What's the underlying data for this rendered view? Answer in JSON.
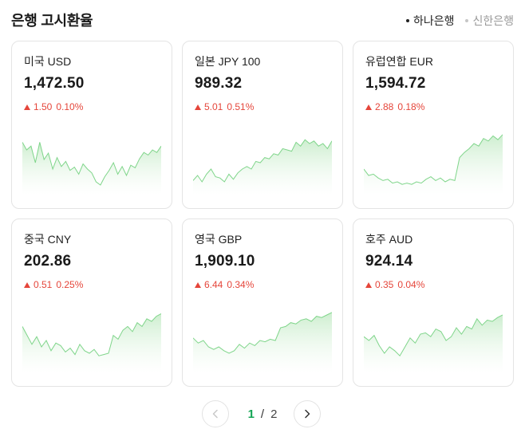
{
  "header": {
    "title": "은행 고시환율",
    "banks": [
      {
        "label": "하나은행",
        "active": true
      },
      {
        "label": "신한은행",
        "active": false
      }
    ]
  },
  "colors": {
    "up": "#e5453a",
    "spark_line": "#7fd58a",
    "spark_fill_top": "#cdeecf",
    "page_current": "#15a556"
  },
  "cards": [
    {
      "name": "미국 USD",
      "rate": "1,472.50",
      "change": "1.50",
      "percent": "0.10%",
      "direction": "up",
      "spark": [
        0.72,
        0.6,
        0.66,
        0.4,
        0.72,
        0.45,
        0.55,
        0.3,
        0.48,
        0.34,
        0.42,
        0.28,
        0.33,
        0.22,
        0.38,
        0.3,
        0.24,
        0.1,
        0.05,
        0.18,
        0.28,
        0.4,
        0.22,
        0.34,
        0.2,
        0.36,
        0.32,
        0.46,
        0.56,
        0.52,
        0.6,
        0.56,
        0.66
      ]
    },
    {
      "name": "일본 JPY 100",
      "rate": "989.32",
      "change": "5.01",
      "percent": "0.51%",
      "direction": "up",
      "spark": [
        0.12,
        0.2,
        0.1,
        0.22,
        0.3,
        0.18,
        0.16,
        0.1,
        0.22,
        0.14,
        0.24,
        0.3,
        0.34,
        0.3,
        0.42,
        0.4,
        0.48,
        0.46,
        0.54,
        0.52,
        0.62,
        0.6,
        0.58,
        0.72,
        0.66,
        0.76,
        0.7,
        0.74,
        0.66,
        0.7,
        0.62,
        0.74
      ]
    },
    {
      "name": "유럽연합 EUR",
      "rate": "1,594.72",
      "change": "2.88",
      "percent": "0.18%",
      "direction": "up",
      "spark": [
        0.3,
        0.2,
        0.22,
        0.16,
        0.12,
        0.14,
        0.08,
        0.1,
        0.06,
        0.08,
        0.06,
        0.1,
        0.08,
        0.14,
        0.18,
        0.12,
        0.16,
        0.1,
        0.14,
        0.12,
        0.48,
        0.56,
        0.62,
        0.7,
        0.66,
        0.78,
        0.74,
        0.82,
        0.76,
        0.84
      ]
    },
    {
      "name": "중국 CNY",
      "rate": "202.86",
      "change": "0.51",
      "percent": "0.25%",
      "direction": "up",
      "spark": [
        0.62,
        0.48,
        0.34,
        0.46,
        0.3,
        0.4,
        0.24,
        0.36,
        0.32,
        0.22,
        0.28,
        0.18,
        0.34,
        0.24,
        0.2,
        0.26,
        0.16,
        0.18,
        0.2,
        0.48,
        0.42,
        0.56,
        0.62,
        0.54,
        0.68,
        0.62,
        0.74,
        0.7,
        0.78,
        0.82
      ]
    },
    {
      "name": "영국 GBP",
      "rate": "1,909.10",
      "change": "6.44",
      "percent": "0.34%",
      "direction": "up",
      "spark": [
        0.44,
        0.36,
        0.4,
        0.3,
        0.26,
        0.3,
        0.24,
        0.2,
        0.24,
        0.34,
        0.28,
        0.36,
        0.32,
        0.4,
        0.38,
        0.42,
        0.4,
        0.6,
        0.62,
        0.68,
        0.66,
        0.72,
        0.74,
        0.7,
        0.78,
        0.76,
        0.8,
        0.84
      ]
    },
    {
      "name": "호주 AUD",
      "rate": "924.14",
      "change": "0.35",
      "percent": "0.04%",
      "direction": "up",
      "spark": [
        0.46,
        0.4,
        0.48,
        0.32,
        0.2,
        0.3,
        0.24,
        0.16,
        0.3,
        0.44,
        0.36,
        0.5,
        0.52,
        0.46,
        0.58,
        0.54,
        0.4,
        0.46,
        0.6,
        0.5,
        0.62,
        0.58,
        0.74,
        0.64,
        0.72,
        0.7,
        0.76,
        0.8
      ]
    }
  ],
  "pagination": {
    "current": "1",
    "separator": "/",
    "total": "2"
  }
}
